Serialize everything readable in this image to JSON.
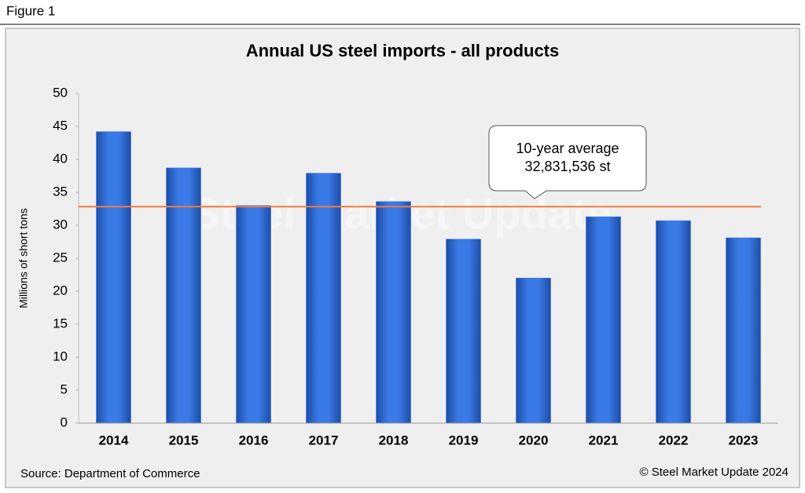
{
  "figure_label": "Figure 1",
  "chart_data": {
    "type": "bar",
    "title": "Annual US steel imports - all products",
    "y_label": "Millions of short tons",
    "categories": [
      "2014",
      "2015",
      "2016",
      "2017",
      "2018",
      "2019",
      "2020",
      "2021",
      "2022",
      "2023"
    ],
    "values": [
      44.2,
      38.7,
      33.0,
      37.9,
      33.6,
      27.9,
      22.0,
      31.3,
      30.7,
      28.1
    ],
    "color": "#2f6ad8",
    "ylim": [
      0,
      50
    ],
    "yticks": [
      0,
      5,
      10,
      15,
      20,
      25,
      30,
      35,
      40,
      45,
      50
    ],
    "average": {
      "value": 32.83,
      "color": "#f07b3f",
      "label": [
        "10-year average",
        "32,831,536 st"
      ]
    },
    "watermark": "Steel Market Update",
    "source": "Source: Department of Commerce",
    "copyright": "© Steel Market Update 2024"
  }
}
